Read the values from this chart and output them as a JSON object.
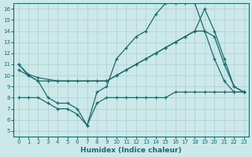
{
  "xlabel": "Humidex (Indice chaleur)",
  "xlim": [
    -0.5,
    23.5
  ],
  "ylim": [
    4.5,
    16.5
  ],
  "yticks": [
    5,
    6,
    7,
    8,
    9,
    10,
    11,
    12,
    13,
    14,
    15,
    16
  ],
  "xticks": [
    0,
    1,
    2,
    3,
    4,
    5,
    6,
    7,
    8,
    9,
    10,
    11,
    12,
    13,
    14,
    15,
    16,
    17,
    18,
    19,
    20,
    21,
    22,
    23
  ],
  "bg_color": "#cde8e8",
  "grid_color": "#a8d0d0",
  "line_color": "#1a6b6b",
  "line1_x": [
    0,
    1,
    2,
    3,
    4,
    5,
    6,
    7,
    8,
    9,
    10,
    11,
    12,
    13,
    14,
    15,
    16,
    17,
    18,
    19,
    20,
    21,
    22,
    23
  ],
  "line1_y": [
    11,
    10,
    9.5,
    8,
    7.5,
    7.5,
    7,
    5.5,
    8.5,
    9,
    11.5,
    12.5,
    13.5,
    14,
    15.5,
    16.5,
    16.5,
    16.5,
    16.5,
    14,
    11.5,
    9.5,
    8.5,
    8.5
  ],
  "line2_x": [
    0,
    1,
    2,
    4,
    9,
    10,
    11,
    12,
    13,
    14,
    15,
    16,
    17,
    18,
    19,
    20,
    21,
    22,
    23
  ],
  "line2_y": [
    11,
    10.1,
    9.8,
    9.5,
    9.5,
    10,
    10.5,
    11,
    11.5,
    12,
    12.5,
    13,
    13.5,
    14,
    16,
    14,
    11.5,
    9,
    8.5
  ],
  "line3_x": [
    0,
    1,
    2,
    3,
    4,
    5,
    6,
    7,
    8,
    9,
    10,
    11,
    12,
    13,
    14,
    15,
    16,
    17,
    18,
    19,
    20,
    21,
    22,
    23
  ],
  "line3_y": [
    8,
    8,
    8,
    7.5,
    7,
    7,
    6.5,
    5.5,
    7.5,
    8,
    8,
    8,
    8,
    8,
    8,
    8,
    8.5,
    8.5,
    8.5,
    8.5,
    8.5,
    8.5,
    8.5,
    8.5
  ],
  "line4_x": [
    0,
    1,
    2,
    3,
    4,
    5,
    6,
    7,
    8,
    9,
    10,
    11,
    12,
    13,
    14,
    15,
    16,
    17,
    18,
    19,
    20,
    21,
    22,
    23
  ],
  "line4_y": [
    10.5,
    10,
    9.5,
    9.5,
    9.5,
    9.5,
    9.5,
    9.5,
    9.5,
    9.5,
    10,
    10.5,
    11,
    11.5,
    12,
    12.5,
    13,
    13.5,
    14,
    14,
    13.5,
    11,
    9,
    8.5
  ]
}
